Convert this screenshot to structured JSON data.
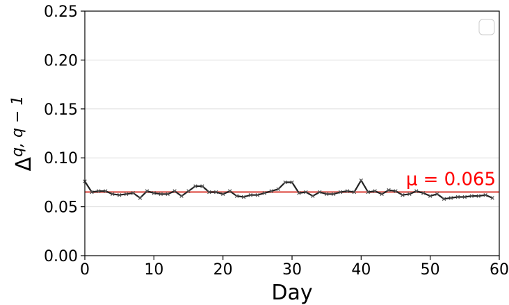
{
  "chart_data": {
    "type": "line",
    "xlabel": "Day",
    "ylabel_base": "Δ",
    "ylabel_sup": "q, q − 1",
    "xlim": [
      0,
      60
    ],
    "ylim": [
      0.0,
      0.25
    ],
    "x_ticks": [
      0,
      10,
      20,
      30,
      40,
      50,
      60
    ],
    "x_tick_labels": [
      "0",
      "10",
      "20",
      "30",
      "40",
      "50",
      "60"
    ],
    "y_ticks": [
      0.0,
      0.05,
      0.1,
      0.15,
      0.2,
      0.25
    ],
    "y_tick_labels": [
      "0.00",
      "0.05",
      "0.10",
      "0.15",
      "0.20",
      "0.25"
    ],
    "grid": "horizontal",
    "legend": "top-right (empty)",
    "series": [
      {
        "color": "#222222",
        "marker": "x",
        "x": [
          0,
          1,
          2,
          3,
          4,
          5,
          6,
          7,
          8,
          9,
          10,
          11,
          12,
          13,
          14,
          15,
          16,
          17,
          18,
          19,
          20,
          21,
          22,
          23,
          24,
          25,
          26,
          27,
          28,
          29,
          30,
          31,
          32,
          33,
          34,
          35,
          36,
          37,
          38,
          39,
          40,
          41,
          42,
          43,
          44,
          45,
          46,
          47,
          48,
          49,
          50,
          51,
          52,
          53,
          54,
          55,
          56,
          57,
          58,
          59
        ],
        "values": [
          0.076,
          0.065,
          0.066,
          0.066,
          0.063,
          0.062,
          0.063,
          0.064,
          0.059,
          0.066,
          0.064,
          0.063,
          0.063,
          0.066,
          0.061,
          0.066,
          0.071,
          0.071,
          0.065,
          0.065,
          0.063,
          0.066,
          0.061,
          0.06,
          0.062,
          0.062,
          0.064,
          0.066,
          0.068,
          0.075,
          0.075,
          0.064,
          0.065,
          0.061,
          0.065,
          0.063,
          0.063,
          0.065,
          0.066,
          0.065,
          0.077,
          0.065,
          0.066,
          0.063,
          0.067,
          0.066,
          0.062,
          0.063,
          0.066,
          0.064,
          0.061,
          0.063,
          0.058,
          0.059,
          0.06,
          0.06,
          0.061,
          0.061,
          0.062,
          0.059
        ]
      }
    ],
    "mean_line": {
      "value": 0.065,
      "color": "#e8847e"
    },
    "annotation": {
      "text": "μ = 0.065",
      "color": "#ff0000",
      "x": 53,
      "y": 0.0785
    }
  }
}
